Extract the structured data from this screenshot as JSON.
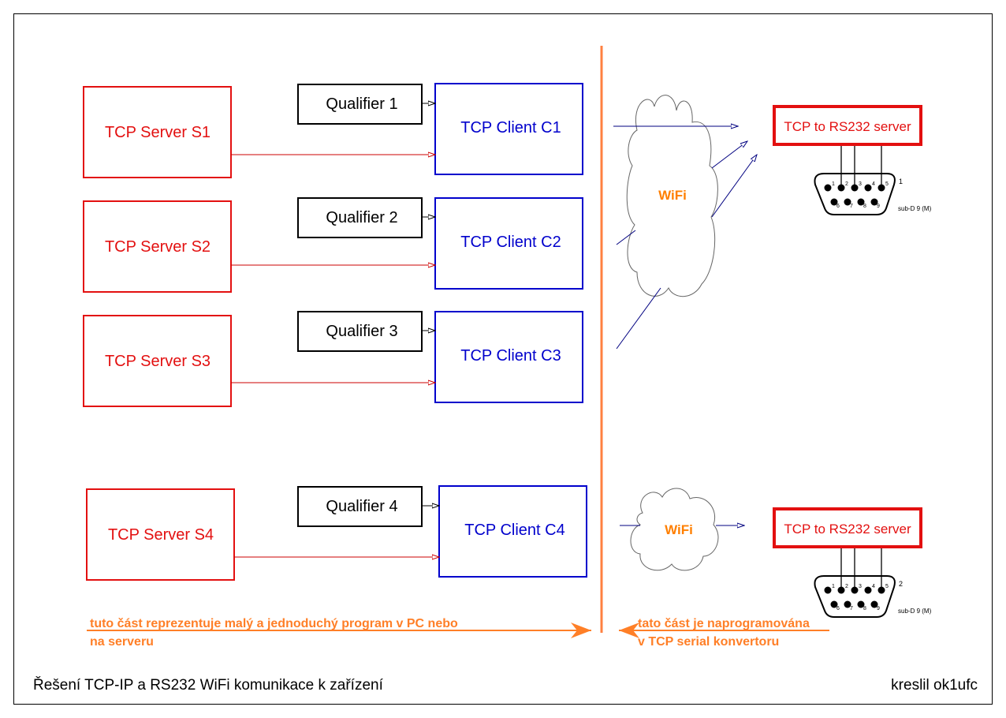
{
  "colors": {
    "server": "#e31010",
    "client": "#0000cc",
    "qualifier": "#000000",
    "divider": "#ff8040",
    "wifi_text": "#ff7f00",
    "link": "#000080"
  },
  "servers": [
    "TCP Server S1",
    "TCP Server S2",
    "TCP Server S3",
    "TCP Server S4"
  ],
  "clients": [
    "TCP Client C1",
    "TCP Client C2",
    "TCP Client C3",
    "TCP Client C4"
  ],
  "qualifiers": [
    "Qualifier 1",
    "Qualifier 2",
    "Qualifier 3",
    "Qualifier 4"
  ],
  "wifi": [
    "WiFi",
    "WiFi"
  ],
  "converters": [
    "TCP to RS232 server",
    "TCP to RS232 server"
  ],
  "connectors": [
    {
      "index": "1",
      "label": "sub-D 9 (M)"
    },
    {
      "index": "2",
      "label": "sub-D 9 (M)"
    }
  ],
  "pins": [
    "1",
    "2",
    "3",
    "4",
    "5",
    "6",
    "7",
    "8",
    "9"
  ],
  "notes": {
    "left_line1": "tuto část reprezentuje malý a jednoduchý program v PC nebo",
    "left_line2": "na serveru",
    "right_line1": "tato část je naprogramována",
    "right_line2": "v TCP serial konvertoru"
  },
  "footer": {
    "title": "Řešení TCP-IP a RS232 WiFi komunikace k zařízení",
    "author": "kreslil ok1ufc"
  }
}
